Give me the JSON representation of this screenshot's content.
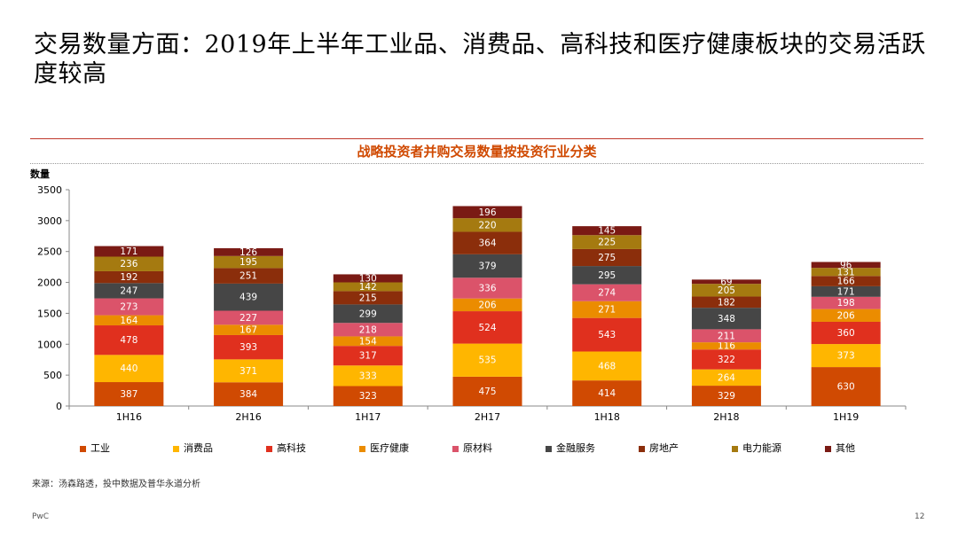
{
  "slide": {
    "title": "交易数量方面：2019年上半年工业品、消费品、高科技和医疗健康板块的交易活跃度较高",
    "source": "来源：汤森路透，投中数据及普华永道分析",
    "footer_brand": "PwC",
    "page_number": "12"
  },
  "chart_data": {
    "type": "bar",
    "stacked": true,
    "title": "战略投资者并购交易数量按投资行业分类",
    "ylabel": "数量",
    "xlabel": "",
    "ylim": [
      0,
      3500
    ],
    "yticks": [
      "0",
      "500",
      "1000",
      "1500",
      "2000",
      "2500",
      "3000",
      "3500"
    ],
    "grid": false,
    "legend_position": "bottom",
    "categories": [
      "1H16",
      "2H16",
      "1H17",
      "2H17",
      "1H18",
      "2H18",
      "1H19"
    ],
    "series": [
      {
        "name": "工业",
        "color": "#d04a02",
        "values": [
          387,
          384,
          323,
          475,
          414,
          329,
          630
        ]
      },
      {
        "name": "消费品",
        "color": "#ffb600",
        "values": [
          440,
          371,
          333,
          535,
          468,
          264,
          373
        ]
      },
      {
        "name": "高科技",
        "color": "#e0301e",
        "values": [
          478,
          393,
          317,
          524,
          543,
          322,
          360
        ]
      },
      {
        "name": "医疗健康",
        "color": "#eb8c00",
        "values": [
          164,
          167,
          154,
          206,
          271,
          116,
          206
        ]
      },
      {
        "name": "原材料",
        "color": "#db536a",
        "values": [
          273,
          227,
          218,
          336,
          274,
          211,
          198
        ]
      },
      {
        "name": "金融服务",
        "color": "#464646",
        "values": [
          247,
          439,
          299,
          379,
          295,
          348,
          171
        ]
      },
      {
        "name": "房地产",
        "color": "#8b2e0b",
        "values": [
          192,
          251,
          215,
          364,
          275,
          182,
          166
        ]
      },
      {
        "name": "电力能源",
        "color": "#a57a10",
        "values": [
          236,
          195,
          142,
          220,
          225,
          205,
          131
        ]
      },
      {
        "name": "其他",
        "color": "#7a1a14",
        "values": [
          171,
          126,
          130,
          196,
          145,
          69,
          96
        ]
      }
    ]
  }
}
